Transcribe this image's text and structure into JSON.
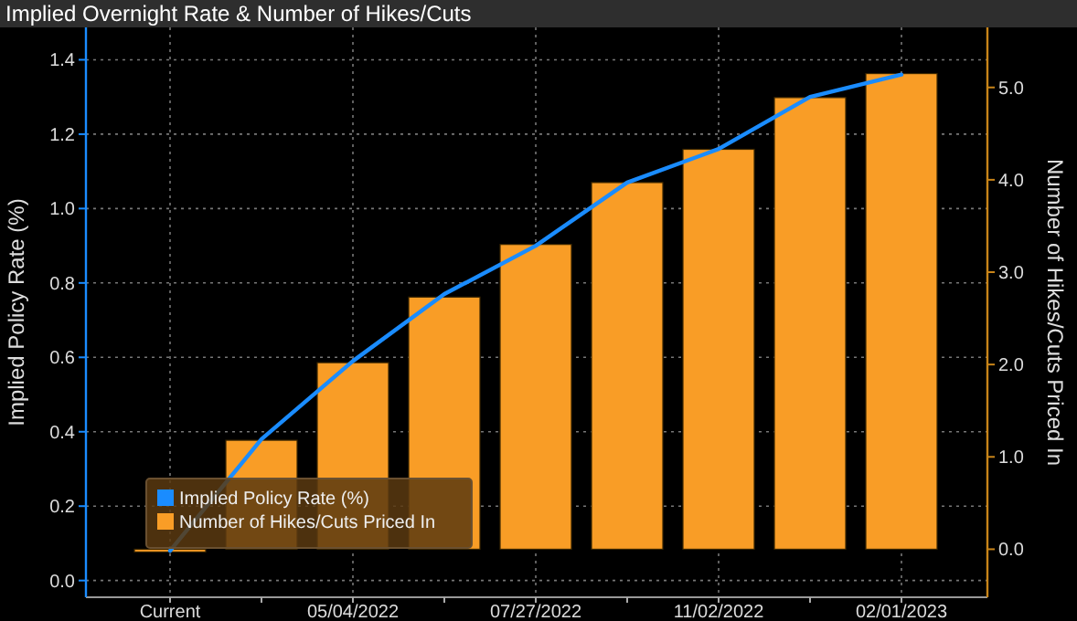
{
  "chart_data": {
    "type": "bar",
    "title": "Implied Overnight Rate & Number of Hikes/Cuts",
    "ylabel": "Implied Policy Rate (%)",
    "y2label": "Number of Hikes/Cuts Priced In",
    "categories": [
      "Current",
      null,
      "05/04/2022",
      null,
      "07/27/2022",
      null,
      "11/02/2022",
      null,
      "02/01/2023"
    ],
    "series": [
      {
        "name": "Implied Policy Rate (%)",
        "type": "line",
        "color": "#1a8cff",
        "values": [
          0.08,
          0.38,
          0.59,
          0.77,
          0.9,
          1.07,
          1.16,
          1.3,
          1.36
        ]
      },
      {
        "name": "Number of Hikes/Cuts Priced In",
        "axis": "y2",
        "color": "#f99d26",
        "values": [
          0,
          1.18,
          2.02,
          2.73,
          3.3,
          3.97,
          4.33,
          4.89,
          5.15
        ]
      }
    ],
    "ylim": [
      -0.045,
      1.487
    ],
    "yticks": [
      {
        "value": 0,
        "label": "0.0"
      },
      {
        "value": 0.2,
        "label": "0.2"
      },
      {
        "value": 0.4,
        "label": "0.4"
      },
      {
        "value": 0.6,
        "label": "0.6"
      },
      {
        "value": 0.8,
        "label": "0.8"
      },
      {
        "value": 1,
        "label": "1.0"
      },
      {
        "value": 1.2,
        "label": "1.2"
      },
      {
        "value": 1.4,
        "label": "1.4"
      }
    ],
    "y2lim": [
      -0.52,
      5.65
    ],
    "y2ticks": [
      {
        "value": 0,
        "label": "0.0"
      },
      {
        "value": 1,
        "label": "1.0"
      },
      {
        "value": 2,
        "label": "2.0"
      },
      {
        "value": 3,
        "label": "3.0"
      },
      {
        "value": 4,
        "label": "4.0"
      },
      {
        "value": 5,
        "label": "5.0"
      }
    ],
    "grid": true,
    "legend": "bottom left",
    "marker": "none",
    "line_style": "solid"
  }
}
